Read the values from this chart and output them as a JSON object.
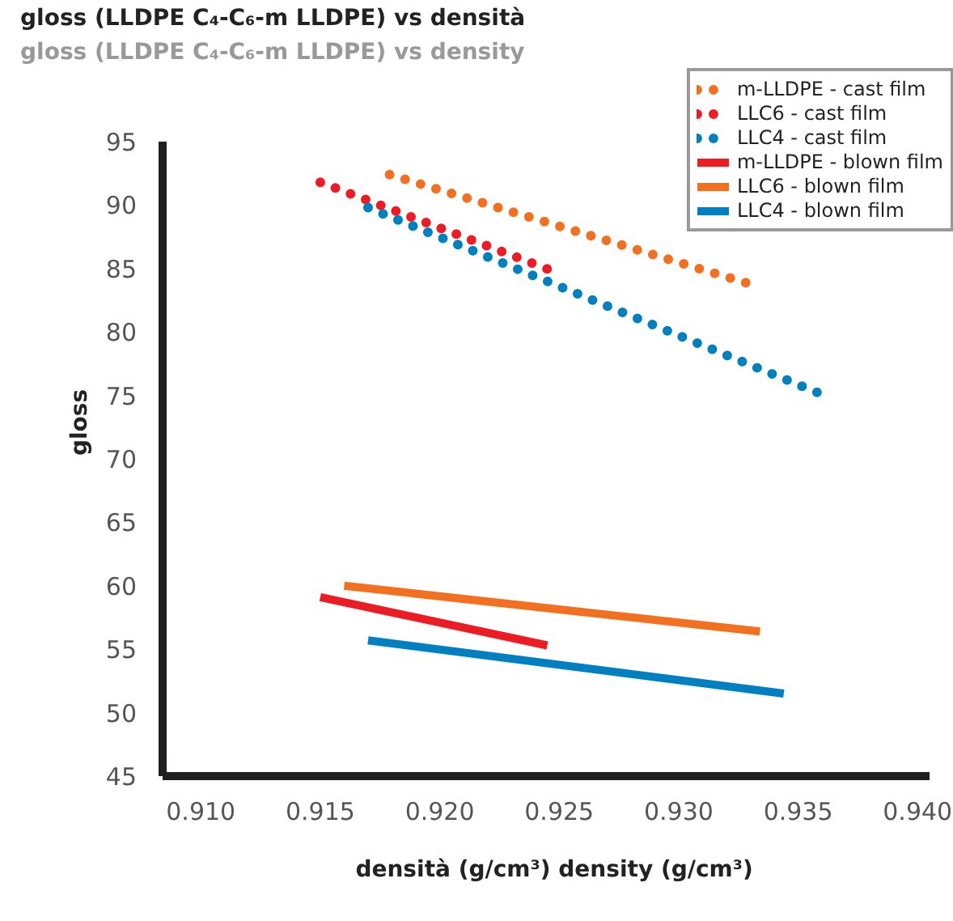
{
  "chart_data": {
    "type": "line",
    "title": "gloss (LLDPE C₄-C₆-m LLDPE) vs densità",
    "subtitle": "gloss (LLDPE C₄-C₆-m LLDPE) vs density",
    "xlabel": "densità (g/cm³)  density (g/cm³)",
    "ylabel": "gloss",
    "xlim": [
      0.9084,
      0.9405
    ],
    "xticks": [
      {
        "value": 0.91,
        "label": "0.910"
      },
      {
        "value": 0.915,
        "label": "0.915"
      },
      {
        "value": 0.92,
        "label": "0.920"
      },
      {
        "value": 0.925,
        "label": "0.925"
      },
      {
        "value": 0.93,
        "label": "0.930"
      },
      {
        "value": 0.935,
        "label": "0.935"
      },
      {
        "value": 0.94,
        "label": "0.940"
      }
    ],
    "ylim": [
      45,
      95
    ],
    "yticks": [
      45,
      50,
      55,
      60,
      65,
      70,
      75,
      80,
      85,
      90,
      95
    ],
    "grid": false,
    "legend": "top right",
    "series": [
      {
        "name": "m-LLDPE - cast film",
        "color": "#f37021",
        "line_style": "dotted",
        "x": [
          0.9179,
          0.9333
        ],
        "values": [
          92.4,
          83.6
        ]
      },
      {
        "name": "LLC6 - cast film",
        "color": "#ed1c24",
        "line_style": "dotted",
        "x": [
          0.915,
          0.9246
        ],
        "values": [
          91.8,
          84.9
        ]
      },
      {
        "name": "LLC4 - cast film",
        "color": "#0080c0",
        "line_style": "dotted",
        "x": [
          0.917,
          0.9361
        ],
        "values": [
          89.8,
          75.0
        ]
      },
      {
        "name": "m-LLDPE - blown film",
        "color": "#ed1c24",
        "line_style": "solid",
        "x": [
          0.915,
          0.9245
        ],
        "values": [
          59.1,
          55.3
        ]
      },
      {
        "name": "LLC6 - blown film",
        "color": "#f37021",
        "line_style": "solid",
        "x": [
          0.916,
          0.9334
        ],
        "values": [
          60.0,
          56.4
        ]
      },
      {
        "name": "LLC4 - blown film",
        "color": "#0080c0",
        "line_style": "solid",
        "x": [
          0.917,
          0.9344
        ],
        "values": [
          55.7,
          51.5
        ]
      }
    ]
  }
}
